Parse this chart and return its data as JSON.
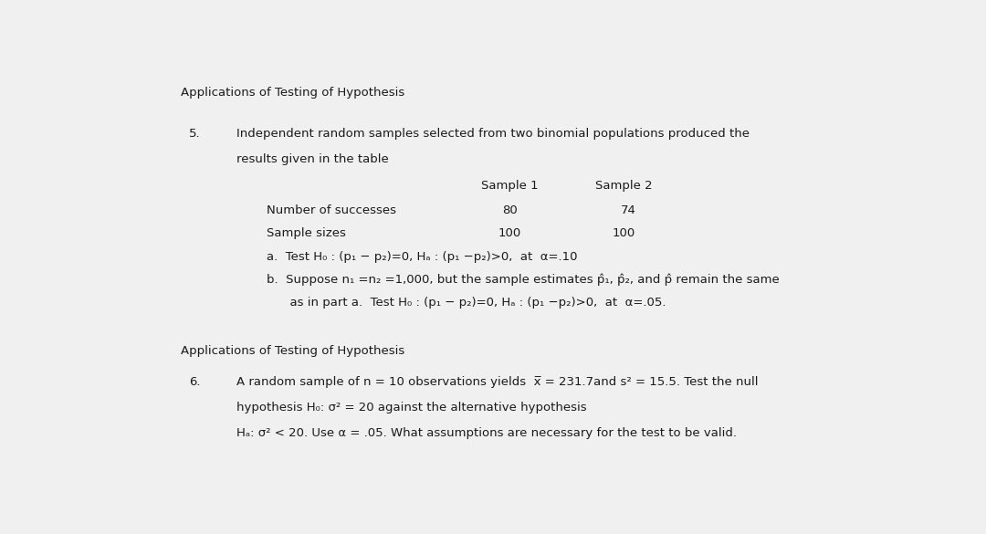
{
  "bg_color": "#f0f0f0",
  "text_color": "#1a1a1a",
  "fontsize": 9.5,
  "title1": "Applications of Testing of Hypothesis",
  "title2": "Applications of Testing of Hypothesis",
  "q5_number": "5.",
  "q6_number": "6.",
  "q5_line1": "Independent random samples selected from two binomial populations produced the",
  "q5_line2": "results given in the table",
  "table_header_1": "Sample 1",
  "table_header_2": "Sample 2",
  "table_row1_label": "Number of successes",
  "table_row2_label": "Sample sizes",
  "table_row1_val1": "80",
  "table_row1_val2": "74",
  "table_row2_val1": "100",
  "table_row2_val2": "100",
  "q5_a": "a.  Test H₀ : (p₁ − p₂)=0, Hₐ : (p₁ −p₂)>0,  at  α=.10",
  "q5_b_line1": "b.  Suppose n₁ =n₂ =1,000, but the sample estimates p̂₁, p̂₂, and p̂ remain the same",
  "q5_b_line2": "      as in part a.  Test H₀ : (p₁ − p₂)=0, Hₐ : (p₁ −p₂)>0,  at  α=.05.",
  "q6_line1": "A random sample of n = 10 observations yields  x̅ = 231.7and s² = 15.5. Test the null",
  "q6_line2": "hypothesis H₀: σ² = 20 against the alternative hypothesis",
  "q6_line3": "Hₐ: σ² < 20. Use α = .05. What assumptions are necessary for the test to be valid."
}
